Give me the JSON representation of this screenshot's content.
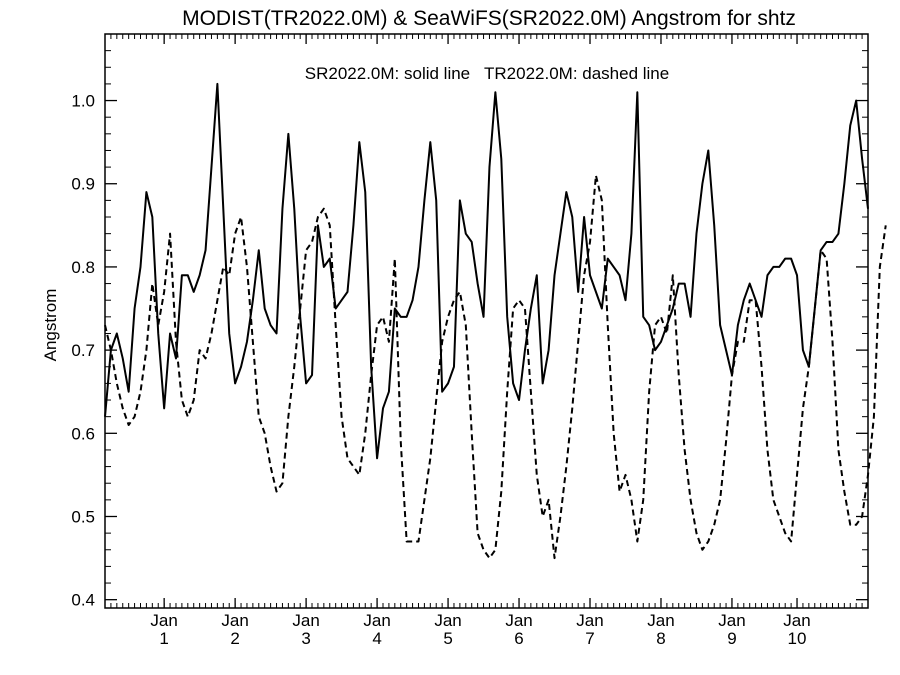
{
  "chart_data": {
    "type": "line",
    "title": "MODIST(TR2022.0M) & SeaWiFS(SR2022.0M)  Angstrom for shtz",
    "annotation": "SR2022.0M: solid line   TR2022.0M: dashed line",
    "ylabel": "Angstrom",
    "xlabel": "",
    "xlim": [
      0,
      129
    ],
    "ylim": [
      0.39,
      1.08
    ],
    "yticks": [
      0.4,
      0.5,
      0.6,
      0.7,
      0.8,
      0.9,
      1.0
    ],
    "ytick_labels": [
      "0.4",
      "0.5",
      "0.6",
      "0.7",
      "0.8",
      "0.9",
      "1.0"
    ],
    "xticks": [
      {
        "x": 10,
        "month": "Jan",
        "year": "1"
      },
      {
        "x": 22,
        "month": "Jan",
        "year": "2"
      },
      {
        "x": 34,
        "month": "Jan",
        "year": "3"
      },
      {
        "x": 46,
        "month": "Jan",
        "year": "4"
      },
      {
        "x": 58,
        "month": "Jan",
        "year": "5"
      },
      {
        "x": 70,
        "month": "Jan",
        "year": "6"
      },
      {
        "x": 82,
        "month": "Jan",
        "year": "7"
      },
      {
        "x": 94,
        "month": "Jan",
        "year": "8"
      },
      {
        "x": 106,
        "month": "Jan",
        "year": "9"
      },
      {
        "x": 117,
        "month": "Jan",
        "year": "10"
      }
    ],
    "grid": false,
    "series": [
      {
        "name": "SR2022.0M",
        "style": "solid",
        "color": "#000000",
        "values": [
          0.62,
          0.7,
          0.72,
          0.69,
          0.65,
          0.75,
          0.8,
          0.89,
          0.86,
          0.72,
          0.63,
          0.72,
          0.69,
          0.79,
          0.79,
          0.77,
          0.79,
          0.82,
          0.92,
          1.02,
          0.87,
          0.72,
          0.66,
          0.68,
          0.71,
          0.76,
          0.82,
          0.75,
          0.73,
          0.72,
          0.87,
          0.96,
          0.87,
          0.74,
          0.66,
          0.67,
          0.85,
          0.8,
          0.81,
          0.75,
          0.76,
          0.77,
          0.85,
          0.95,
          0.89,
          0.68,
          0.57,
          0.63,
          0.65,
          0.75,
          0.74,
          0.74,
          0.76,
          0.8,
          0.88,
          0.95,
          0.88,
          0.65,
          0.66,
          0.68,
          0.88,
          0.84,
          0.83,
          0.78,
          0.74,
          0.92,
          1.01,
          0.93,
          0.74,
          0.66,
          0.64,
          0.7,
          0.75,
          0.79,
          0.66,
          0.7,
          0.79,
          0.84,
          0.89,
          0.86,
          0.77,
          0.86,
          0.79,
          0.77,
          0.75,
          0.81,
          0.8,
          0.79,
          0.76,
          0.84,
          1.01,
          0.74,
          0.73,
          0.7,
          0.71,
          0.73,
          0.75,
          0.78,
          0.78,
          0.74,
          0.84,
          0.9,
          0.94,
          0.85,
          0.73,
          0.7,
          0.67,
          0.73,
          0.76,
          0.78,
          0.76,
          0.74,
          0.79,
          0.8,
          0.8,
          0.81,
          0.81,
          0.79,
          0.7,
          0.68,
          0.75,
          0.82,
          0.83,
          0.83,
          0.84,
          0.9,
          0.97,
          1.0,
          0.93,
          0.87
        ]
      },
      {
        "name": "TR2022.0M",
        "style": "dashed",
        "color": "#000000",
        "values": [
          0.73,
          0.7,
          0.66,
          0.63,
          0.61,
          0.62,
          0.65,
          0.7,
          0.78,
          0.73,
          0.77,
          0.84,
          0.71,
          0.64,
          0.62,
          0.64,
          0.7,
          0.69,
          0.72,
          0.76,
          0.8,
          0.79,
          0.84,
          0.86,
          0.8,
          0.71,
          0.62,
          0.6,
          0.56,
          0.53,
          0.54,
          0.62,
          0.68,
          0.75,
          0.82,
          0.83,
          0.86,
          0.87,
          0.85,
          0.73,
          0.62,
          0.57,
          0.56,
          0.55,
          0.6,
          0.67,
          0.73,
          0.74,
          0.71,
          0.81,
          0.59,
          0.47,
          0.47,
          0.47,
          0.52,
          0.57,
          0.64,
          0.71,
          0.74,
          0.76,
          0.77,
          0.73,
          0.6,
          0.48,
          0.46,
          0.45,
          0.46,
          0.53,
          0.65,
          0.75,
          0.76,
          0.75,
          0.65,
          0.55,
          0.5,
          0.52,
          0.45,
          0.5,
          0.56,
          0.63,
          0.71,
          0.79,
          0.83,
          0.91,
          0.88,
          0.73,
          0.6,
          0.53,
          0.55,
          0.52,
          0.47,
          0.52,
          0.65,
          0.73,
          0.74,
          0.72,
          0.79,
          0.67,
          0.58,
          0.52,
          0.48,
          0.46,
          0.47,
          0.49,
          0.52,
          0.59,
          0.67,
          0.71,
          0.71,
          0.76,
          0.76,
          0.68,
          0.58,
          0.52,
          0.5,
          0.48,
          0.47,
          0.55,
          0.63,
          0.68,
          0.75,
          0.82,
          0.81,
          0.71,
          0.58,
          0.53,
          0.49,
          0.49,
          0.5,
          0.55,
          0.62,
          0.8,
          0.85
        ]
      }
    ]
  }
}
